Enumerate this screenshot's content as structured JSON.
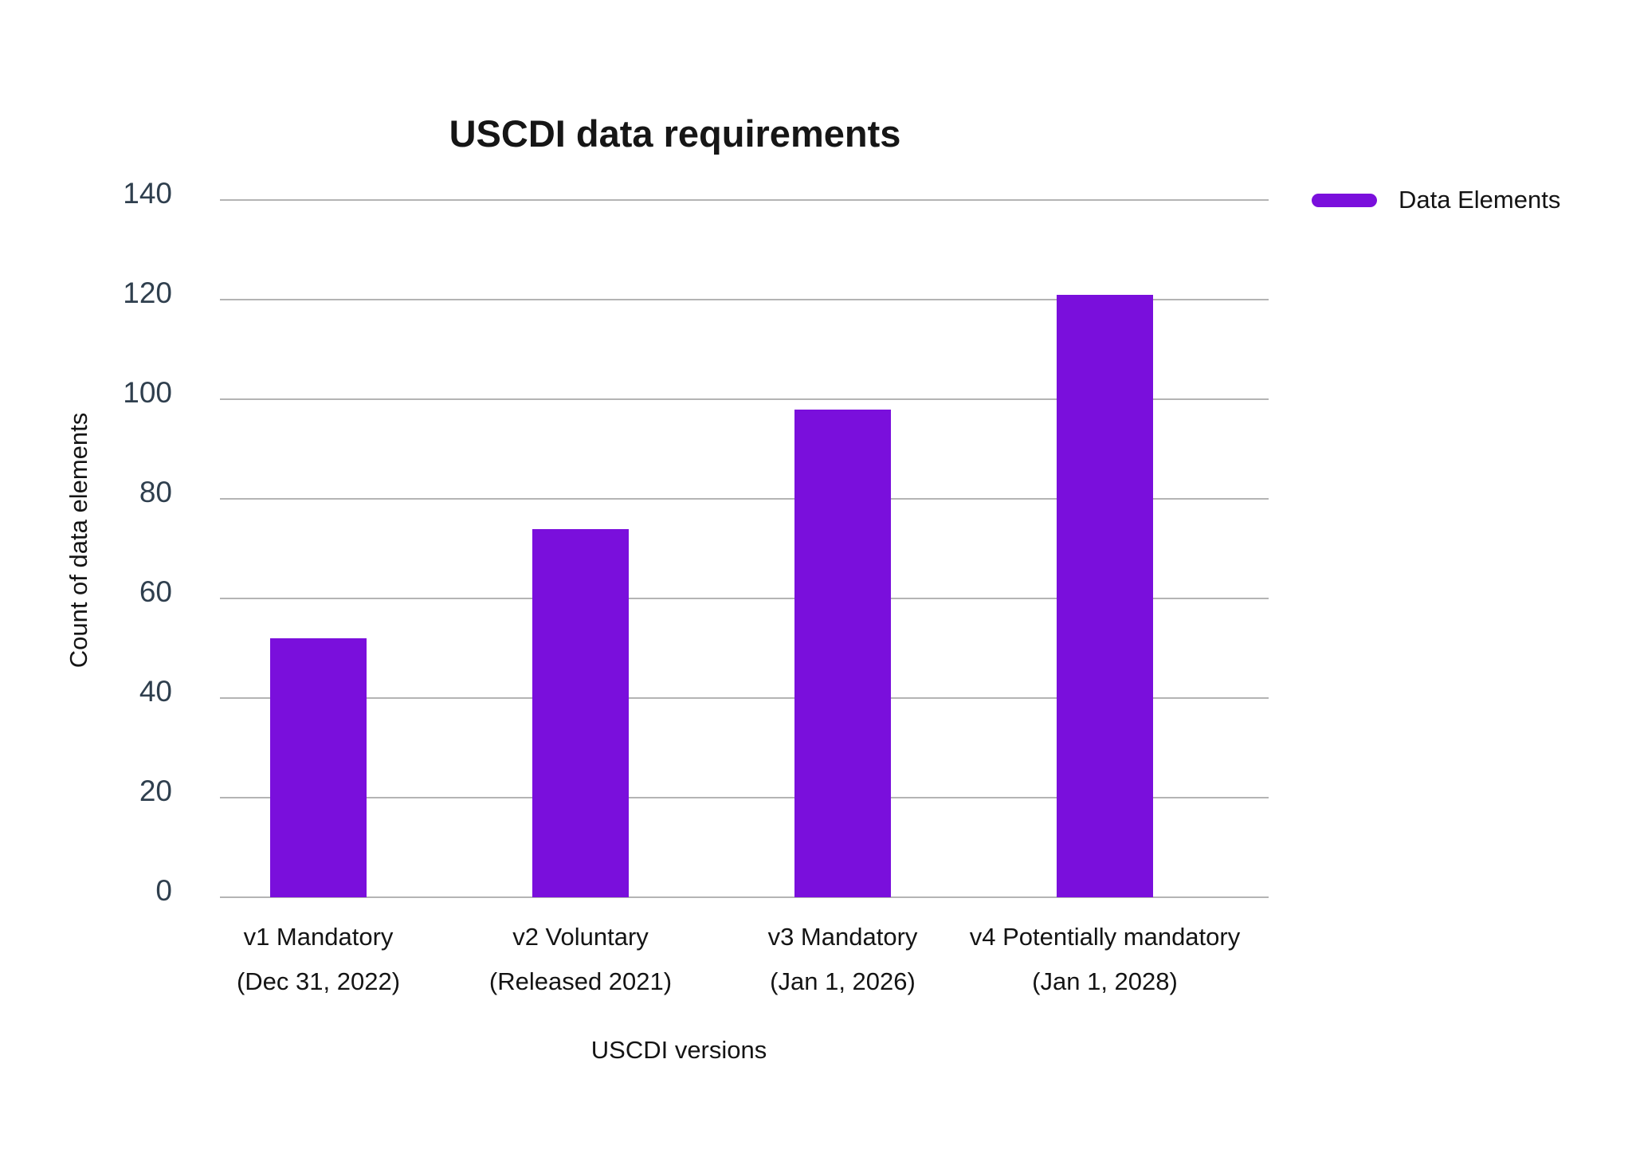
{
  "chart_data": {
    "type": "bar",
    "title": "USCDI data requirements",
    "xlabel": "USCDI versions",
    "ylabel": "Count of data elements",
    "categories": [
      {
        "line1": "v1 Mandatory",
        "line2": "(Dec 31, 2022)"
      },
      {
        "line1": "v2 Voluntary",
        "line2": "(Released 2021)"
      },
      {
        "line1": "v3 Mandatory",
        "line2": "(Jan 1, 2026)"
      },
      {
        "line1": "v4 Potentially mandatory",
        "line2": "(Jan 1, 2028)"
      }
    ],
    "series": [
      {
        "name": "Data Elements",
        "values": [
          52,
          74,
          98,
          121
        ]
      }
    ],
    "ylim": [
      0,
      140
    ],
    "ytick_step": 20,
    "grid": true,
    "legend_position": "top-right",
    "colors": {
      "bar": "#7A0FDC",
      "grid": "#b4b4b4",
      "tick_text": "#2f3f4e",
      "label_text": "#141414",
      "title_text": "#161616",
      "background": "#ffffff"
    }
  }
}
